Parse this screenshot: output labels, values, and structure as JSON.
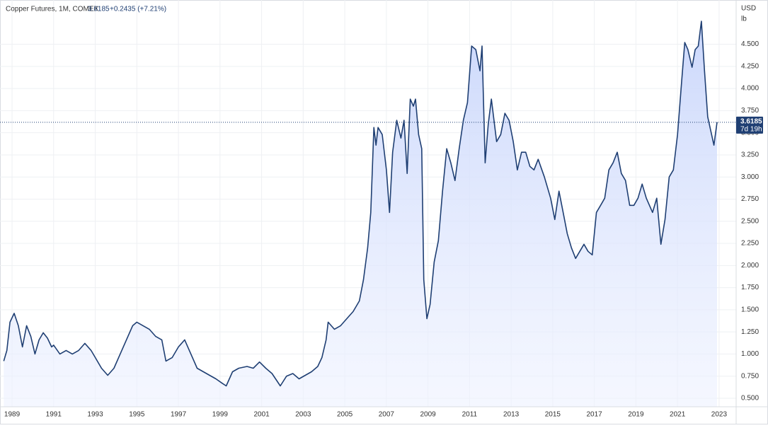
{
  "chart_data": {
    "type": "area",
    "title": "Copper Futures, 1M, COMEX",
    "change": "+0.2435 (+7.21%)",
    "currency": "USD",
    "unit": "lb",
    "countdown": "7d 19h",
    "price_line": {
      "value": 3.6185,
      "label": "3.6185"
    },
    "color": "#1f3f73",
    "grid": true,
    "xlim": [
      1988.59,
      2023.82
    ],
    "ylim": [
      0.404,
      5.0
    ],
    "xticks": [
      1989,
      1991,
      1993,
      1995,
      1997,
      1999,
      2001,
      2003,
      2005,
      2007,
      2009,
      2011,
      2013,
      2015,
      2017,
      2019,
      2021,
      2023
    ],
    "yticks": [
      {
        "value": 0.5,
        "label": "0.500"
      },
      {
        "value": 0.75,
        "label": "0.750"
      },
      {
        "value": 1.0,
        "label": "1.000"
      },
      {
        "value": 1.25,
        "label": "1.250"
      },
      {
        "value": 1.5,
        "label": "1.500"
      },
      {
        "value": 1.75,
        "label": "1.750"
      },
      {
        "value": 2.0,
        "label": "2.000"
      },
      {
        "value": 2.25,
        "label": "2.250"
      },
      {
        "value": 2.5,
        "label": "2.500"
      },
      {
        "value": 2.75,
        "label": "2.750"
      },
      {
        "value": 3.0,
        "label": "3.000"
      },
      {
        "value": 3.25,
        "label": "3.250"
      },
      {
        "value": 3.5,
        "label": "3.500"
      },
      {
        "value": 3.75,
        "label": "3.750"
      },
      {
        "value": 4.0,
        "label": "4.000"
      },
      {
        "value": 4.25,
        "label": "4.250"
      },
      {
        "value": 4.5,
        "label": "4.500"
      }
    ],
    "x": [
      1988.6,
      1988.75,
      1988.9,
      1989.1,
      1989.3,
      1989.5,
      1989.7,
      1989.9,
      1990.1,
      1990.3,
      1990.5,
      1990.7,
      1990.9,
      1991.0,
      1991.3,
      1991.6,
      1991.9,
      1992.2,
      1992.5,
      1992.8,
      1993.0,
      1993.3,
      1993.6,
      1993.9,
      1994.2,
      1994.5,
      1994.8,
      1995.0,
      1995.3,
      1995.6,
      1995.9,
      1996.2,
      1996.4,
      1996.7,
      1997.0,
      1997.3,
      1997.6,
      1997.9,
      1998.2,
      1998.5,
      1998.8,
      1999.1,
      1999.3,
      1999.6,
      1999.9,
      2000.3,
      2000.6,
      2000.9,
      2001.2,
      2001.5,
      2001.9,
      2002.2,
      2002.5,
      2002.8,
      2003.1,
      2003.4,
      2003.7,
      2003.9,
      2004.1,
      2004.2,
      2004.5,
      2004.8,
      2005.1,
      2005.4,
      2005.7,
      2005.9,
      2006.1,
      2006.25,
      2006.4,
      2006.5,
      2006.6,
      2006.8,
      2007.0,
      2007.15,
      2007.3,
      2007.5,
      2007.7,
      2007.85,
      2008.0,
      2008.15,
      2008.3,
      2008.4,
      2008.55,
      2008.7,
      2008.8,
      2008.95,
      2009.1,
      2009.3,
      2009.5,
      2009.7,
      2009.9,
      2010.1,
      2010.3,
      2010.5,
      2010.7,
      2010.9,
      2011.1,
      2011.3,
      2011.5,
      2011.6,
      2011.75,
      2011.9,
      2012.05,
      2012.3,
      2012.5,
      2012.7,
      2012.9,
      2013.1,
      2013.3,
      2013.5,
      2013.7,
      2013.9,
      2014.1,
      2014.3,
      2014.6,
      2014.9,
      2015.1,
      2015.3,
      2015.5,
      2015.7,
      2015.9,
      2016.1,
      2016.3,
      2016.5,
      2016.7,
      2016.9,
      2017.1,
      2017.3,
      2017.5,
      2017.7,
      2017.9,
      2018.1,
      2018.3,
      2018.5,
      2018.7,
      2018.9,
      2019.1,
      2019.3,
      2019.5,
      2019.8,
      2020.0,
      2020.2,
      2020.4,
      2020.6,
      2020.8,
      2021.0,
      2021.2,
      2021.35,
      2021.5,
      2021.7,
      2021.85,
      2022.0,
      2022.15,
      2022.3,
      2022.45,
      2022.6,
      2022.75,
      2022.9
    ],
    "values": [
      0.92,
      1.04,
      1.36,
      1.46,
      1.32,
      1.08,
      1.32,
      1.2,
      1.0,
      1.16,
      1.24,
      1.18,
      1.08,
      1.1,
      1.0,
      1.04,
      1.0,
      1.04,
      1.12,
      1.04,
      0.96,
      0.84,
      0.76,
      0.84,
      1.0,
      1.16,
      1.32,
      1.36,
      1.32,
      1.28,
      1.2,
      1.16,
      0.92,
      0.96,
      1.08,
      1.16,
      1.0,
      0.84,
      0.8,
      0.76,
      0.72,
      0.67,
      0.64,
      0.8,
      0.84,
      0.86,
      0.84,
      0.91,
      0.84,
      0.78,
      0.64,
      0.75,
      0.78,
      0.72,
      0.76,
      0.8,
      0.86,
      0.96,
      1.16,
      1.36,
      1.28,
      1.32,
      1.4,
      1.48,
      1.6,
      1.84,
      2.2,
      2.6,
      3.56,
      3.36,
      3.56,
      3.48,
      3.08,
      2.6,
      3.28,
      3.64,
      3.44,
      3.64,
      3.04,
      3.88,
      3.8,
      3.88,
      3.48,
      3.32,
      1.84,
      1.4,
      1.56,
      2.04,
      2.28,
      2.84,
      3.32,
      3.16,
      2.96,
      3.32,
      3.64,
      3.84,
      4.48,
      4.44,
      4.2,
      4.48,
      3.16,
      3.6,
      3.88,
      3.4,
      3.48,
      3.72,
      3.64,
      3.4,
      3.08,
      3.28,
      3.28,
      3.12,
      3.08,
      3.2,
      3.0,
      2.76,
      2.52,
      2.84,
      2.6,
      2.36,
      2.2,
      2.08,
      2.16,
      2.24,
      2.16,
      2.12,
      2.6,
      2.68,
      2.76,
      3.08,
      3.16,
      3.28,
      3.04,
      2.96,
      2.68,
      2.68,
      2.76,
      2.92,
      2.76,
      2.6,
      2.76,
      2.24,
      2.52,
      3.0,
      3.08,
      3.48,
      4.08,
      4.52,
      4.44,
      4.24,
      4.44,
      4.48,
      4.76,
      4.2,
      3.68,
      3.52,
      3.36,
      3.6185
    ]
  }
}
